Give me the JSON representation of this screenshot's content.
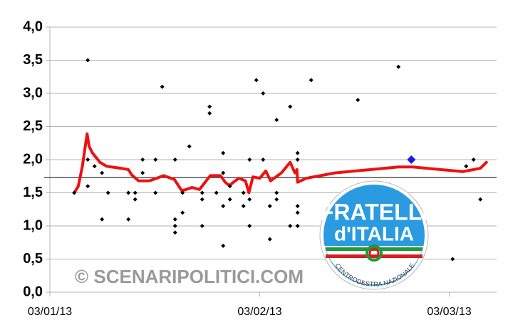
{
  "chart_data": {
    "type": "scatter",
    "xlim": [
      0,
      66
    ],
    "ylim": [
      0,
      4
    ],
    "xticks": [
      {
        "value": 0,
        "label": "03/01/13"
      },
      {
        "value": 31,
        "label": "03/02/13"
      },
      {
        "value": 59,
        "label": "03/03/13"
      }
    ],
    "yticks": [
      {
        "value": 0,
        "label": "0,0"
      },
      {
        "value": 0.5,
        "label": "0,5"
      },
      {
        "value": 1,
        "label": "1,0"
      },
      {
        "value": 1.5,
        "label": "1,5"
      },
      {
        "value": 2,
        "label": "2,0"
      },
      {
        "value": 2.5,
        "label": "2,5"
      },
      {
        "value": 3,
        "label": "3,0"
      },
      {
        "value": 3.5,
        "label": "3,5"
      },
      {
        "value": 4,
        "label": "4,0"
      }
    ],
    "grid": true,
    "reference_line": {
      "value": 1.73,
      "color": "#000000"
    },
    "series": [
      {
        "type": "scatter",
        "color": "#000000",
        "x": [
          3.6,
          5.6,
          5.6,
          5.6,
          6.6,
          7.7,
          7.7,
          8.6,
          11.6,
          11.6,
          12.6,
          12.6,
          13.7,
          13.7,
          15.6,
          15.6,
          16.6,
          18.5,
          18.5,
          18.5,
          18.5,
          19.6,
          19.6,
          20.6,
          22.5,
          22.5,
          22.5,
          23.6,
          23.6,
          24.6,
          25.6,
          25.6,
          25.6,
          25.6,
          26.6,
          26.6,
          28.6,
          28.6,
          29.5,
          29.5,
          29.5,
          30.5,
          31.5,
          31.5,
          32.5,
          32.5,
          33.5,
          33.5,
          33.5,
          35.5,
          35.5,
          36.6,
          36.6,
          36.6,
          36.6,
          36.6,
          38.6,
          45.5,
          51.5,
          59.5,
          61.5,
          62.6,
          63.6
        ],
        "values": [
          1.5,
          3.5,
          1.6,
          2.0,
          1.9,
          1.8,
          1.1,
          1.5,
          1.5,
          1.1,
          1.5,
          1.4,
          2.0,
          1.8,
          2.0,
          1.5,
          3.1,
          2.0,
          1.1,
          1.0,
          0.9,
          1.2,
          1.5,
          2.2,
          1.5,
          1.4,
          1.0,
          2.8,
          2.7,
          1.5,
          2.1,
          1.8,
          1.3,
          0.7,
          1.6,
          1.4,
          1.5,
          1.3,
          2.0,
          1.4,
          1.0,
          3.2,
          3.0,
          2.0,
          0.8,
          1.3,
          2.6,
          1.5,
          1.4,
          2.8,
          1.0,
          2.1,
          2.0,
          1.3,
          1.2,
          1.0,
          3.2,
          2.9,
          3.4,
          0.5,
          1.9,
          2.0,
          1.4
        ]
      },
      {
        "type": "line",
        "color": "#ee1111",
        "x": [
          3.6,
          4.2,
          4.8,
          5.5,
          5.8,
          6.3,
          7.4,
          8.4,
          10.5,
          11.6,
          12.1,
          13.1,
          14.7,
          15.8,
          16.8,
          18.4,
          19.5,
          21.0,
          22.1,
          23.7,
          25.2,
          25.9,
          26.5,
          27.9,
          28.9,
          29.4,
          30.0,
          31.0,
          31.9,
          32.6,
          34.2,
          35.5,
          36.2,
          36.5,
          36.6,
          37.9,
          42.1,
          47.3,
          51.5,
          53.6,
          57.8,
          61.0,
          62.6,
          63.6,
          64.5
        ],
        "values": [
          1.5,
          1.6,
          1.9,
          2.39,
          2.2,
          2.1,
          1.96,
          1.9,
          1.87,
          1.85,
          1.77,
          1.68,
          1.68,
          1.72,
          1.76,
          1.7,
          1.53,
          1.58,
          1.55,
          1.76,
          1.76,
          1.66,
          1.61,
          1.72,
          1.68,
          1.5,
          1.74,
          1.72,
          1.83,
          1.68,
          1.8,
          1.96,
          1.8,
          1.85,
          1.66,
          1.72,
          1.8,
          1.85,
          1.89,
          1.89,
          1.85,
          1.82,
          1.85,
          1.87,
          1.96
        ]
      },
      {
        "type": "scatter",
        "color": "#1a1aee",
        "x": [
          53.4
        ],
        "values": [
          2.0
        ]
      }
    ],
    "watermark": "© SCENARIPOLITICI.COM",
    "logo": {
      "line1": "FRATELLI",
      "line2": "d'ITALIA",
      "tagline": "CENTRODESTRA NAZIONALE"
    }
  }
}
